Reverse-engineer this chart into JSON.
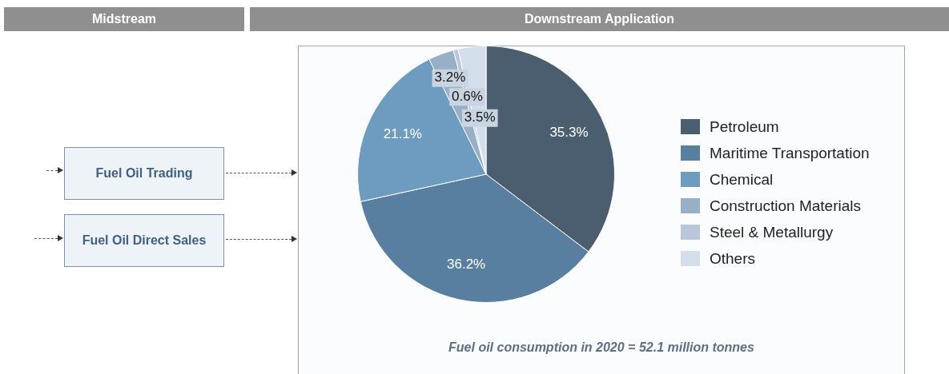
{
  "chart_data": {
    "type": "pie",
    "categories": [
      "Petroleum",
      "Maritime Transportation",
      "Chemical",
      "Construction Materials",
      "Steel & Metallurgy",
      "Others"
    ],
    "values": [
      35.3,
      36.2,
      21.1,
      3.2,
      0.6,
      3.5
    ],
    "value_labels": [
      "35.3%",
      "36.2%",
      "21.1%",
      "3.2%",
      "0.6%",
      "3.5%"
    ],
    "colors": [
      "#4b5e70",
      "#587fa0",
      "#6e9bc0",
      "#98afc8",
      "#b8c7d9",
      "#d4deeb"
    ],
    "legend": "right",
    "annotations": [
      "Midstream",
      "Downstream Application",
      "Fuel Oil Trading",
      "Fuel Oil Direct Sales",
      "Fuel oil consumption in 2020 = 52.1 million tonnes"
    ]
  }
}
